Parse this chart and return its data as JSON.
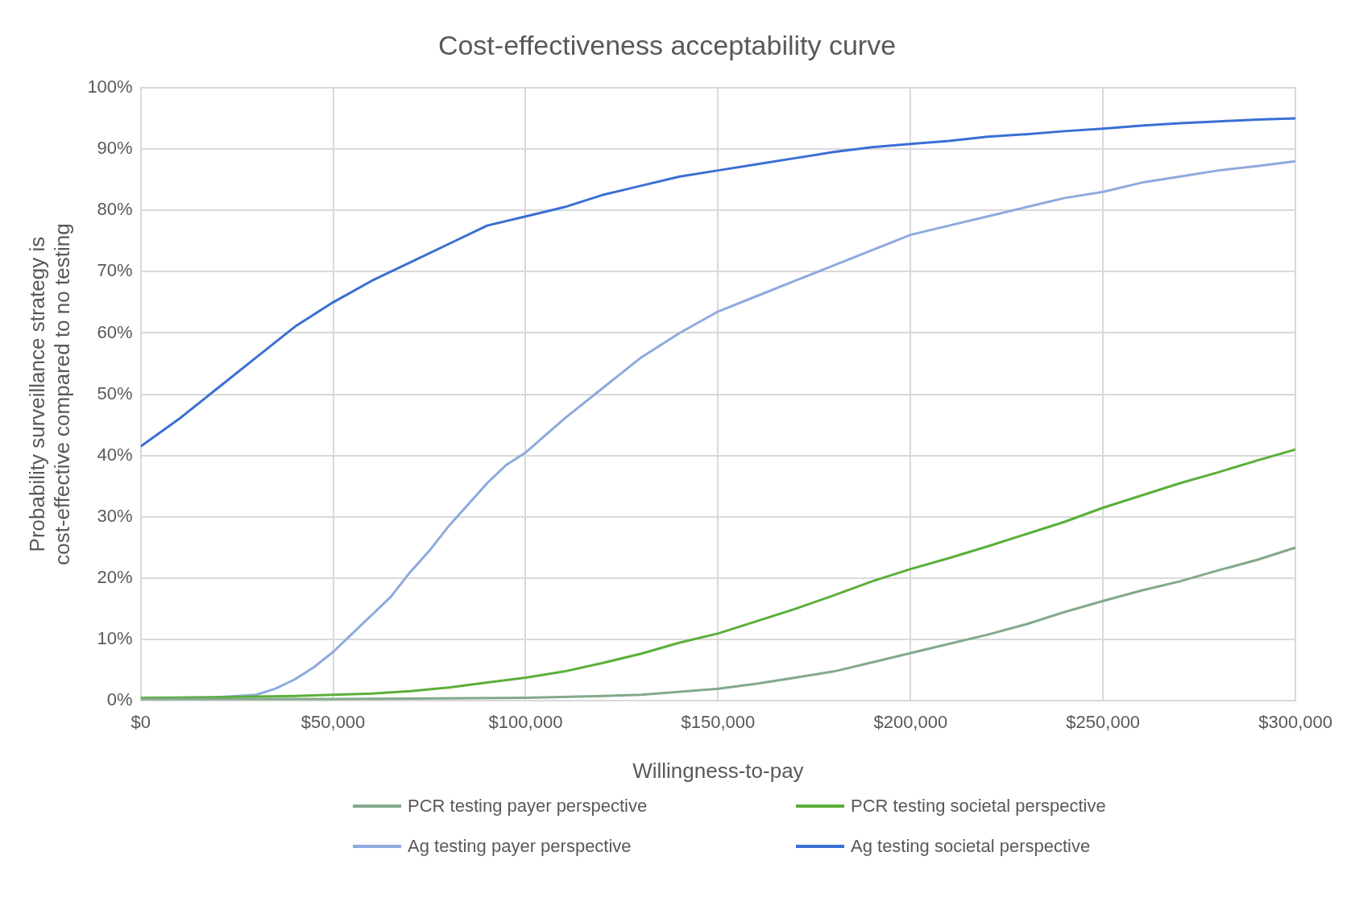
{
  "chart_data": {
    "type": "line",
    "title": "Cost-effectiveness acceptability curve",
    "xlabel": "Willingness-to-pay",
    "ylabel": "Probability surveillance strategy is cost-effective compared to no testing",
    "xlim": [
      0,
      300000
    ],
    "xticks": [
      {
        "value": 0,
        "label": "$0"
      },
      {
        "value": 50000,
        "label": "$50,000"
      },
      {
        "value": 100000,
        "label": "$100,000"
      },
      {
        "value": 150000,
        "label": "$150,000"
      },
      {
        "value": 200000,
        "label": "$200,000"
      },
      {
        "value": 250000,
        "label": "$250,000"
      },
      {
        "value": 300000,
        "label": "$300,000"
      }
    ],
    "ylim": [
      0,
      100
    ],
    "yticks": [
      {
        "value": 0,
        "label": "0%"
      },
      {
        "value": 10,
        "label": "10%"
      },
      {
        "value": 20,
        "label": "20%"
      },
      {
        "value": 30,
        "label": "30%"
      },
      {
        "value": 40,
        "label": "40%"
      },
      {
        "value": 50,
        "label": "50%"
      },
      {
        "value": 60,
        "label": "60%"
      },
      {
        "value": 70,
        "label": "70%"
      },
      {
        "value": 80,
        "label": "80%"
      },
      {
        "value": 90,
        "label": "90%"
      },
      {
        "value": 100,
        "label": "100%"
      }
    ],
    "grid": true,
    "legend": "bottom",
    "marker": "none",
    "line_style": "solid",
    "series": [
      {
        "name": "PCR testing payer perspective",
        "color": "#82a98a",
        "x": [
          0,
          50000,
          100000,
          120000,
          130000,
          140000,
          150000,
          160000,
          170000,
          180000,
          190000,
          200000,
          210000,
          220000,
          230000,
          240000,
          250000,
          260000,
          270000,
          280000,
          290000,
          300000
        ],
        "values": [
          0.3,
          0.3,
          0.5,
          0.8,
          1,
          1.5,
          2,
          2.8,
          3.8,
          4.8,
          6.3,
          7.8,
          9.3,
          10.8,
          12.5,
          14.5,
          16.3,
          18,
          19.5,
          21.3,
          23,
          25
        ]
      },
      {
        "name": "PCR testing societal perspective",
        "color": "#5aaf3a",
        "x": [
          0,
          20000,
          40000,
          50000,
          60000,
          70000,
          80000,
          90000,
          100000,
          110000,
          120000,
          130000,
          140000,
          150000,
          160000,
          170000,
          180000,
          190000,
          200000,
          210000,
          220000,
          230000,
          240000,
          250000,
          260000,
          270000,
          280000,
          290000,
          300000
        ],
        "values": [
          0.5,
          0.6,
          0.8,
          1,
          1.2,
          1.6,
          2.2,
          3,
          3.8,
          4.8,
          6.2,
          7.7,
          9.5,
          11,
          13,
          15,
          17.2,
          19.5,
          21.5,
          23.3,
          25.2,
          27.2,
          29.2,
          31.5,
          33.5,
          35.5,
          37.3,
          39.2,
          41
        ]
      },
      {
        "name": "Ag testing payer perspective",
        "color": "#8eaadc",
        "x": [
          0,
          10000,
          20000,
          30000,
          35000,
          40000,
          45000,
          50000,
          55000,
          60000,
          65000,
          70000,
          75000,
          80000,
          85000,
          90000,
          95000,
          100000,
          110000,
          120000,
          130000,
          140000,
          150000,
          160000,
          170000,
          180000,
          190000,
          200000,
          210000,
          220000,
          230000,
          240000,
          250000,
          260000,
          270000,
          280000,
          290000,
          300000
        ],
        "values": [
          0.5,
          0.5,
          0.6,
          1,
          2,
          3.5,
          5.5,
          8,
          11,
          14,
          17,
          21,
          24.5,
          28.5,
          32,
          35.5,
          38.5,
          40.5,
          46,
          51,
          56,
          60,
          63.5,
          66,
          68.5,
          71,
          73.5,
          76,
          77.5,
          79,
          80.5,
          82,
          83,
          84.5,
          85.5,
          86.5,
          87.2,
          88
        ]
      },
      {
        "name": "Ag testing societal perspective",
        "color": "#3a6fd4",
        "x": [
          0,
          10000,
          20000,
          30000,
          40000,
          50000,
          60000,
          70000,
          80000,
          90000,
          100000,
          110000,
          120000,
          130000,
          140000,
          150000,
          160000,
          170000,
          180000,
          190000,
          200000,
          210000,
          220000,
          230000,
          240000,
          250000,
          260000,
          270000,
          280000,
          290000,
          300000
        ],
        "values": [
          41.5,
          46,
          51,
          56,
          61,
          65,
          68.5,
          71.5,
          74.5,
          77.5,
          79,
          80.5,
          82.5,
          84,
          85.5,
          86.5,
          87.5,
          88.5,
          89.5,
          90.3,
          90.8,
          91.3,
          92,
          92.4,
          92.9,
          93.3,
          93.8,
          94.2,
          94.5,
          94.8,
          95
        ]
      }
    ]
  }
}
